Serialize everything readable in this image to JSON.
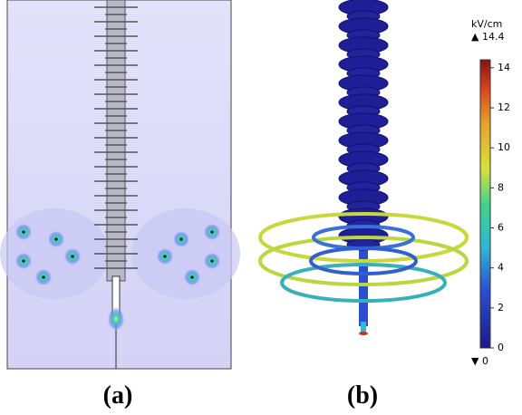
{
  "panels": [
    {
      "label": "(a)"
    },
    {
      "label": "(b)"
    }
  ],
  "colorbar": {
    "unit": "kV/cm",
    "max": 14.4,
    "min": 0,
    "max_label": "14.4",
    "min_label": "0",
    "ticks": [
      0,
      2,
      4,
      6,
      8,
      10,
      12,
      14
    ]
  }
}
